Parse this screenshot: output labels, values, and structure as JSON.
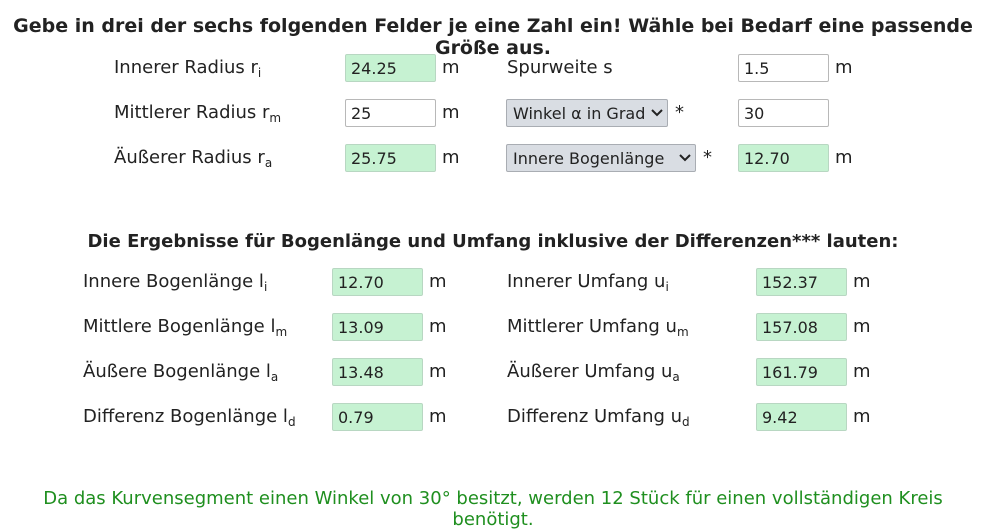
{
  "title": "Gebe in drei der sechs folgenden Felder je eine Zahl ein! Wähle bei Bedarf eine passende Größe aus.",
  "inputs": {
    "inner_radius": {
      "label": "Innerer Radius r",
      "sub": "i",
      "value": "24.25",
      "unit": "m"
    },
    "middle_radius": {
      "label": "Mittlerer Radius r",
      "sub": "m",
      "value": "25",
      "unit": "m"
    },
    "outer_radius": {
      "label": "Äußerer Radius r",
      "sub": "a",
      "value": "25.75",
      "unit": "m"
    },
    "track_width": {
      "label": "Spurweite s",
      "value": "1.5",
      "unit": "m"
    },
    "angle": {
      "select_value": "Winkel α in Grad",
      "star": "*",
      "value": "30"
    },
    "arc": {
      "select_value": "Innere Bogenlänge",
      "star": "*",
      "value": "12.70",
      "unit": "m"
    }
  },
  "results_title": "Die Ergebnisse für Bogenlänge und Umfang inklusive der Differenzen*** lauten:",
  "results": {
    "inner_arc": {
      "label": "Innere Bogenlänge l",
      "sub": "i",
      "value": "12.70",
      "unit": "m"
    },
    "middle_arc": {
      "label": "Mittlere Bogenlänge l",
      "sub": "m",
      "value": "13.09",
      "unit": "m"
    },
    "outer_arc": {
      "label": "Äußere Bogenlänge l",
      "sub": "a",
      "value": "13.48",
      "unit": "m"
    },
    "diff_arc": {
      "label": "Differenz Bogenlänge l",
      "sub": "d",
      "value": "0.79",
      "unit": "m"
    },
    "inner_circ": {
      "label": "Innerer Umfang u",
      "sub": "i",
      "value": "152.37",
      "unit": "m"
    },
    "middle_circ": {
      "label": "Mittlerer Umfang u",
      "sub": "m",
      "value": "157.08",
      "unit": "m"
    },
    "outer_circ": {
      "label": "Äußerer Umfang u",
      "sub": "a",
      "value": "161.79",
      "unit": "m"
    },
    "diff_circ": {
      "label": "Differenz Umfang u",
      "sub": "d",
      "value": "9.42",
      "unit": "m"
    }
  },
  "footer": "Da das Kurvensegment einen Winkel von 30° besitzt, werden 12 Stück für einen vollständigen Kreis benötigt.",
  "colors": {
    "result_bg": "#c6f2d2",
    "footer_text": "#1f8f1f",
    "select_bg": "#d9dde3"
  }
}
